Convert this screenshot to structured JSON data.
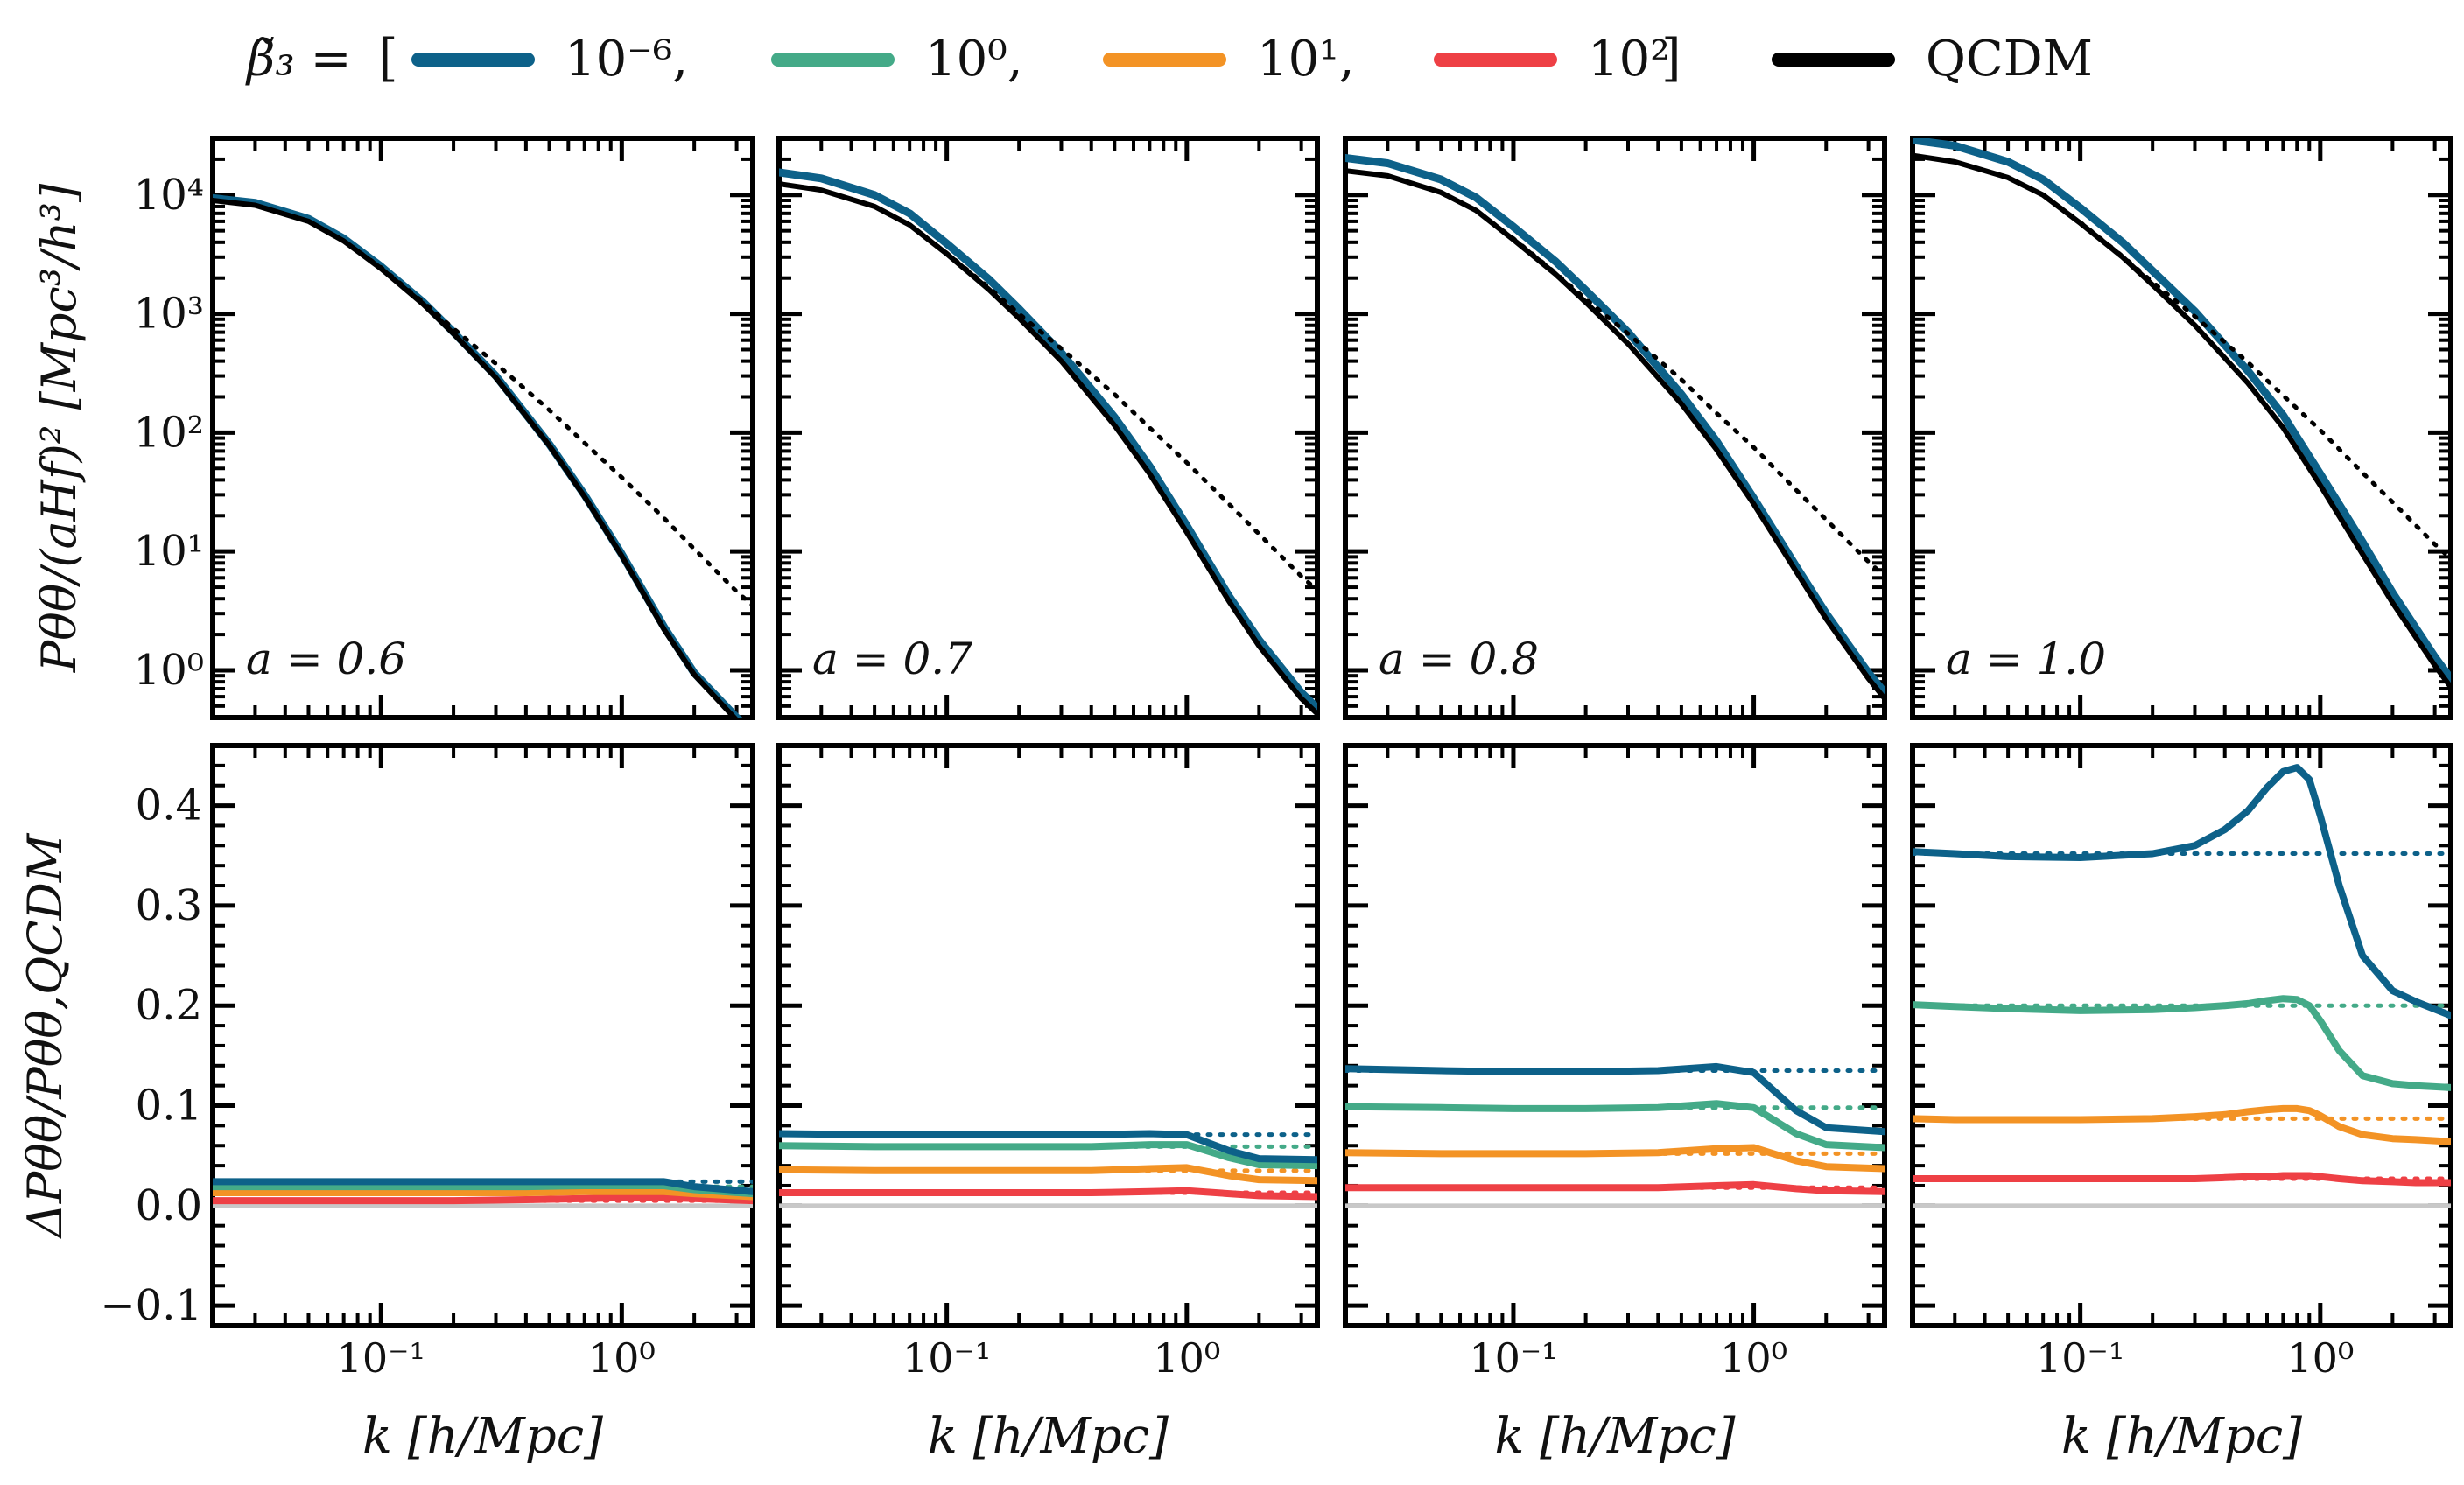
{
  "legend": {
    "param_label": "β̃₃ =",
    "open_bracket": "[",
    "close_bracket": "]",
    "entries": [
      {
        "label": "10⁻⁶,",
        "color": "#0d6189"
      },
      {
        "label": "10⁰,",
        "color": "#44aa88"
      },
      {
        "label": "10¹,",
        "color": "#f39325"
      },
      {
        "label": "10²",
        "color": "#ee4045"
      },
      {
        "label": "QCDM",
        "color": "#000000"
      }
    ]
  },
  "chart_data": [
    {
      "type": "line",
      "panel": "top",
      "scale_factor_label": "a = 0.6",
      "ylabel": "Pθθ/(aHf)²   [Mpc³/h³]",
      "xscale": "log",
      "yscale": "log",
      "xlim": [
        0.02,
        3.5
      ],
      "ylim": [
        0.4,
        30000
      ],
      "yticks": [
        "10⁴",
        "10³",
        "10²",
        "10¹",
        "10⁰"
      ],
      "x": [
        0.02,
        0.03,
        0.05,
        0.07,
        0.1,
        0.15,
        0.2,
        0.3,
        0.5,
        0.7,
        1.0,
        1.5,
        2.0,
        3.0,
        3.5
      ],
      "series": [
        {
          "label": "10⁻⁶",
          "values": [
            9400,
            8600,
            6300,
            4300,
            2500,
            1250,
            700,
            300,
            80,
            30,
            9.5,
            2.3,
            0.95,
            0.4,
            0.3
          ]
        },
        {
          "label": "QCDM",
          "values": [
            9000,
            8200,
            6000,
            4100,
            2400,
            1200,
            680,
            290,
            78,
            29,
            9.2,
            2.2,
            0.92,
            0.38,
            0.29
          ]
        },
        {
          "label": "linear",
          "style": "dotted",
          "values": [
            9000,
            8200,
            6000,
            4100,
            2450,
            1250,
            750,
            380,
            155,
            82,
            42,
            19,
            10.5,
            4.6,
            3.5
          ]
        }
      ]
    },
    {
      "type": "line",
      "panel": "top",
      "scale_factor_label": "a = 0.7",
      "xscale": "log",
      "yscale": "log",
      "xlim": [
        0.02,
        3.5
      ],
      "ylim": [
        0.4,
        30000
      ],
      "x": [
        0.02,
        0.03,
        0.05,
        0.07,
        0.1,
        0.15,
        0.2,
        0.3,
        0.5,
        0.7,
        1.0,
        1.5,
        2.0,
        3.0,
        3.5
      ],
      "series": [
        {
          "label": "10⁻⁶",
          "values": [
            15500,
            13800,
            10000,
            7000,
            3900,
            1950,
            1100,
            470,
            135,
            52,
            16.5,
            4.2,
            1.8,
            0.65,
            0.48
          ]
        },
        {
          "label": "QCDM",
          "values": [
            12400,
            11000,
            8000,
            5600,
            3200,
            1600,
            920,
            400,
            115,
            45,
            14.5,
            3.8,
            1.6,
            0.58,
            0.43
          ]
        },
        {
          "label": "linear",
          "style": "dotted",
          "values": [
            12400,
            11000,
            8000,
            5600,
            3250,
            1660,
            1000,
            510,
            210,
            110,
            56,
            25,
            14,
            6.2,
            4.7
          ]
        }
      ]
    },
    {
      "type": "line",
      "panel": "top",
      "scale_factor_label": "a = 0.8",
      "xscale": "log",
      "yscale": "log",
      "xlim": [
        0.02,
        3.5
      ],
      "ylim": [
        0.4,
        30000
      ],
      "x": [
        0.02,
        0.03,
        0.05,
        0.07,
        0.1,
        0.15,
        0.2,
        0.3,
        0.5,
        0.7,
        1.0,
        1.5,
        2.0,
        3.0,
        3.5
      ],
      "series": [
        {
          "label": "10⁻⁶",
          "values": [
            20500,
            18500,
            13500,
            9500,
            5400,
            2750,
            1580,
            700,
            210,
            85,
            28,
            7.5,
            3.0,
            0.95,
            0.65
          ]
        },
        {
          "label": "QCDM",
          "values": [
            16000,
            14500,
            10500,
            7400,
            4200,
            2150,
            1250,
            560,
            175,
            72,
            25,
            6.8,
            2.7,
            0.85,
            0.58
          ]
        },
        {
          "label": "linear",
          "style": "dotted",
          "values": [
            16000,
            14500,
            10500,
            7400,
            4300,
            2200,
            1330,
            680,
            280,
            146,
            75,
            33,
            18.5,
            8.2,
            6.2
          ]
        }
      ]
    },
    {
      "type": "line",
      "panel": "top",
      "scale_factor_label": "a = 1.0",
      "xscale": "log",
      "yscale": "log",
      "xlim": [
        0.02,
        3.5
      ],
      "ylim": [
        0.4,
        30000
      ],
      "x": [
        0.02,
        0.03,
        0.05,
        0.07,
        0.1,
        0.15,
        0.2,
        0.3,
        0.5,
        0.7,
        1.0,
        1.5,
        2.0,
        3.0,
        3.5
      ],
      "series": [
        {
          "label": "10⁻⁶",
          "values": [
            29000,
            26000,
            19000,
            13500,
            7800,
            4000,
            2300,
            1050,
            330,
            140,
            45,
            12,
            4.5,
            1.3,
            0.85
          ]
        },
        {
          "label": "QCDM",
          "values": [
            21500,
            19000,
            14000,
            10000,
            5800,
            3000,
            1750,
            800,
            260,
            110,
            36,
            9.5,
            3.7,
            1.1,
            0.72
          ]
        },
        {
          "label": "linear",
          "style": "dotted",
          "values": [
            21500,
            19000,
            14000,
            10000,
            5900,
            3050,
            1850,
            950,
            390,
            205,
            105,
            46,
            26,
            11.5,
            8.7
          ]
        }
      ]
    },
    {
      "type": "line",
      "panel": "bottom",
      "ylabel": "ΔPθθ/Pθθ,QCDM",
      "xlabel": "k   [h/Mpc]",
      "xscale": "log",
      "xlim": [
        0.02,
        3.5
      ],
      "ylim": [
        -0.12,
        0.46
      ],
      "yticks": [
        "−0.1",
        "0.0",
        "0.1",
        "0.2",
        "0.3",
        "0.4"
      ],
      "xticks": [
        "10⁻¹",
        "10⁰"
      ],
      "x": [
        0.02,
        0.05,
        0.1,
        0.2,
        0.4,
        0.7,
        1.0,
        1.5,
        2.0,
        3.5
      ],
      "series": [
        {
          "label": "10⁻⁶",
          "values": [
            0.024,
            0.024,
            0.024,
            0.024,
            0.024,
            0.024,
            0.024,
            0.024,
            0.019,
            0.014
          ],
          "linear": 0.024
        },
        {
          "label": "10⁰",
          "values": [
            0.019,
            0.019,
            0.019,
            0.019,
            0.019,
            0.02,
            0.02,
            0.02,
            0.016,
            0.012
          ],
          "linear": 0.019
        },
        {
          "label": "10¹",
          "values": [
            0.013,
            0.013,
            0.013,
            0.013,
            0.013,
            0.014,
            0.014,
            0.014,
            0.012,
            0.009
          ],
          "linear": 0.013
        },
        {
          "label": "10²",
          "values": [
            0.005,
            0.005,
            0.005,
            0.005,
            0.006,
            0.007,
            0.008,
            0.008,
            0.007,
            0.005
          ],
          "linear": 0.005
        }
      ]
    },
    {
      "type": "line",
      "panel": "bottom",
      "xlabel": "k   [h/Mpc]",
      "xscale": "log",
      "xlim": [
        0.02,
        3.5
      ],
      "ylim": [
        -0.12,
        0.46
      ],
      "xticks": [
        "10⁻¹",
        "10⁰"
      ],
      "x": [
        0.02,
        0.05,
        0.1,
        0.2,
        0.4,
        0.7,
        1.0,
        1.5,
        2.0,
        3.5
      ],
      "series": [
        {
          "label": "10⁻⁶",
          "values": [
            0.072,
            0.071,
            0.071,
            0.071,
            0.071,
            0.072,
            0.071,
            0.055,
            0.047,
            0.046
          ],
          "linear": 0.071
        },
        {
          "label": "10⁰",
          "values": [
            0.06,
            0.059,
            0.059,
            0.059,
            0.059,
            0.061,
            0.061,
            0.048,
            0.041,
            0.04
          ],
          "linear": 0.059
        },
        {
          "label": "10¹",
          "values": [
            0.036,
            0.035,
            0.035,
            0.035,
            0.035,
            0.037,
            0.038,
            0.03,
            0.026,
            0.025
          ],
          "linear": 0.035
        },
        {
          "label": "10²",
          "values": [
            0.013,
            0.013,
            0.013,
            0.013,
            0.013,
            0.014,
            0.015,
            0.012,
            0.01,
            0.009
          ],
          "linear": 0.013
        }
      ]
    },
    {
      "type": "line",
      "panel": "bottom",
      "xlabel": "k   [h/Mpc]",
      "xscale": "log",
      "xlim": [
        0.02,
        3.5
      ],
      "ylim": [
        -0.12,
        0.46
      ],
      "xticks": [
        "10⁻¹",
        "10⁰"
      ],
      "x": [
        0.02,
        0.05,
        0.1,
        0.2,
        0.4,
        0.7,
        1.0,
        1.5,
        2.0,
        3.5
      ],
      "series": [
        {
          "label": "10⁻⁶",
          "values": [
            0.137,
            0.135,
            0.134,
            0.134,
            0.135,
            0.139,
            0.133,
            0.095,
            0.078,
            0.074
          ],
          "linear": 0.135
        },
        {
          "label": "10⁰",
          "values": [
            0.099,
            0.098,
            0.097,
            0.097,
            0.098,
            0.102,
            0.098,
            0.072,
            0.061,
            0.058
          ],
          "linear": 0.098
        },
        {
          "label": "10¹",
          "values": [
            0.053,
            0.052,
            0.052,
            0.052,
            0.053,
            0.057,
            0.058,
            0.045,
            0.039,
            0.037
          ],
          "linear": 0.052
        },
        {
          "label": "10²",
          "values": [
            0.018,
            0.018,
            0.018,
            0.018,
            0.018,
            0.02,
            0.021,
            0.017,
            0.015,
            0.014
          ],
          "linear": 0.018
        }
      ]
    },
    {
      "type": "line",
      "panel": "bottom",
      "xlabel": "k   [h/Mpc]",
      "xscale": "log",
      "xlim": [
        0.02,
        3.5
      ],
      "ylim": [
        -0.12,
        0.46
      ],
      "xticks": [
        "10⁻¹",
        "10⁰"
      ],
      "x": [
        0.02,
        0.03,
        0.05,
        0.1,
        0.2,
        0.3,
        0.4,
        0.5,
        0.6,
        0.7,
        0.8,
        0.9,
        1.0,
        1.2,
        1.5,
        2.0,
        2.5,
        3.5
      ],
      "series": [
        {
          "label": "10⁻⁶",
          "values": [
            0.354,
            0.352,
            0.349,
            0.348,
            0.352,
            0.36,
            0.376,
            0.395,
            0.418,
            0.434,
            0.438,
            0.426,
            0.39,
            0.32,
            0.25,
            0.215,
            0.204,
            0.19
          ],
          "linear": 0.352
        },
        {
          "label": "10⁰",
          "values": [
            0.201,
            0.199,
            0.197,
            0.195,
            0.196,
            0.198,
            0.2,
            0.202,
            0.205,
            0.207,
            0.206,
            0.2,
            0.185,
            0.155,
            0.13,
            0.122,
            0.12,
            0.118
          ],
          "linear": 0.2
        },
        {
          "label": "10¹",
          "values": [
            0.087,
            0.086,
            0.086,
            0.086,
            0.087,
            0.089,
            0.091,
            0.094,
            0.096,
            0.097,
            0.097,
            0.095,
            0.09,
            0.079,
            0.071,
            0.067,
            0.066,
            0.064
          ],
          "linear": 0.087
        },
        {
          "label": "10²",
          "values": [
            0.027,
            0.027,
            0.027,
            0.027,
            0.027,
            0.027,
            0.028,
            0.029,
            0.029,
            0.03,
            0.03,
            0.03,
            0.029,
            0.027,
            0.025,
            0.024,
            0.023,
            0.023
          ],
          "linear": 0.027
        }
      ]
    }
  ]
}
